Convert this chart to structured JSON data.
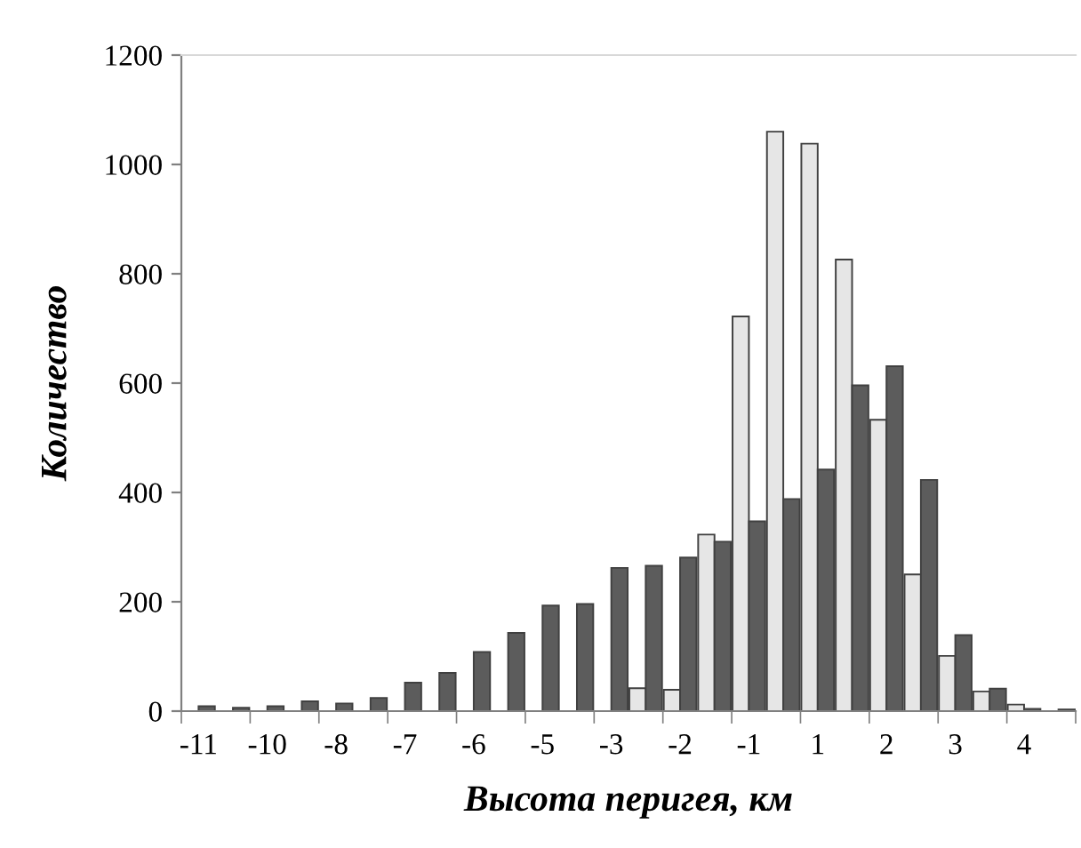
{
  "chart_data": {
    "type": "bar",
    "xlabel": "Высота перигея, км",
    "ylabel": "Количество",
    "categories": [
      "-11",
      null,
      "-10",
      null,
      "-8",
      null,
      "-7",
      null,
      "-6",
      null,
      "-5",
      null,
      "-3",
      null,
      "-2",
      null,
      "-1",
      null,
      "1",
      null,
      "2",
      null,
      "3",
      null,
      "4",
      null
    ],
    "series": [
      {
        "color": "#e6e6e6",
        "values": [
          null,
          null,
          null,
          null,
          null,
          null,
          null,
          null,
          null,
          null,
          null,
          null,
          null,
          42,
          39,
          323,
          722,
          1060,
          1038,
          826,
          533,
          250,
          101,
          36,
          12,
          null
        ]
      },
      {
        "color": "#5c5c5c",
        "values": [
          9,
          6,
          9,
          18,
          14,
          24,
          52,
          70,
          108,
          143,
          193,
          196,
          262,
          266,
          281,
          310,
          347,
          388,
          442,
          596,
          631,
          423,
          139,
          41,
          4,
          3
        ]
      }
    ],
    "ylim": [
      0,
      1200
    ],
    "yticks": [
      0,
      200,
      400,
      600,
      800,
      1000,
      1200
    ],
    "grid": false
  }
}
